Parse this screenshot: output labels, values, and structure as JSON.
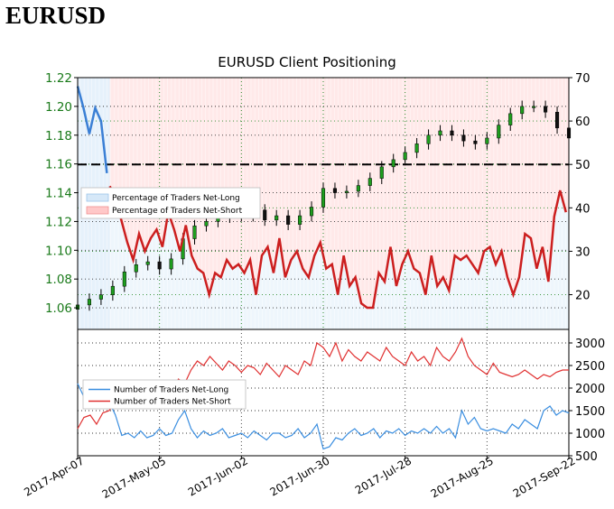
{
  "heading": "EURUSD",
  "chart_data": [
    {
      "type": "line",
      "title": "EURUSD Client Positioning",
      "x_ticks": [
        "2017-Apr-07",
        "2017-May-05",
        "2017-Jun-02",
        "2017-Jun-30",
        "2017-Jul-28",
        "2017-Aug-25",
        "2017-Sep-22"
      ],
      "y_left": {
        "ylim": [
          1.045,
          1.22
        ],
        "ticks": [
          "1.06",
          "1.08",
          "1.10",
          "1.12",
          "1.14",
          "1.16",
          "1.18",
          "1.20",
          "1.22"
        ]
      },
      "y_right": {
        "ylim": [
          12,
          70
        ],
        "ticks": [
          "20",
          "30",
          "40",
          "50",
          "60",
          "70"
        ]
      },
      "reference_line": {
        "value": 50,
        "axis": "right",
        "style": "dashed"
      },
      "legend": {
        "position": "center-left",
        "entries": [
          "Percentage of Traders Net-Long",
          "Percentage of Traders Net-Short"
        ]
      },
      "price_series": {
        "type": "candlestick",
        "x": [
          0,
          4,
          8,
          12,
          16,
          20,
          24,
          28,
          32,
          36,
          40,
          44,
          48,
          52,
          56,
          60,
          64,
          68,
          72,
          76,
          80,
          84,
          88,
          92,
          96,
          100,
          104,
          108,
          112,
          116,
          120,
          124,
          128,
          132,
          136,
          140,
          144,
          148,
          152,
          156,
          160,
          164,
          168
        ],
        "close": [
          1.062,
          1.066,
          1.069,
          1.075,
          1.085,
          1.09,
          1.092,
          1.087,
          1.094,
          1.108,
          1.117,
          1.12,
          1.123,
          1.127,
          1.124,
          1.128,
          1.121,
          1.124,
          1.118,
          1.124,
          1.13,
          1.143,
          1.14,
          1.141,
          1.145,
          1.15,
          1.158,
          1.163,
          1.168,
          1.174,
          1.18,
          1.183,
          1.18,
          1.176,
          1.174,
          1.178,
          1.187,
          1.195,
          1.2,
          1.2,
          1.196,
          1.185,
          1.178
        ]
      },
      "series": [
        {
          "name": "Percentage of Traders Net-Short",
          "color": "#cc1f1f",
          "x": [
            11,
            13,
            15,
            17,
            19,
            21,
            23,
            25,
            27,
            29,
            31,
            33,
            35,
            37,
            39,
            41,
            43,
            45,
            47,
            49,
            51,
            53,
            55,
            57,
            59,
            61,
            63,
            65,
            67,
            69,
            71,
            73,
            75,
            77,
            79,
            81,
            83,
            85,
            87,
            89,
            91,
            93,
            95,
            97,
            99,
            101,
            103,
            105,
            107,
            109,
            111,
            113,
            115,
            117,
            119,
            121,
            123,
            125,
            127,
            129,
            131,
            133,
            135,
            137,
            139,
            141,
            143,
            145,
            147,
            149,
            151,
            153,
            155,
            157,
            159,
            161,
            163,
            165,
            167
          ],
          "values": [
            45,
            42,
            37,
            32,
            28,
            34,
            30,
            33,
            35,
            31,
            39,
            35,
            30,
            36,
            29,
            26,
            25,
            20,
            25,
            24,
            28,
            26,
            27,
            25,
            28,
            20,
            29,
            31,
            25,
            33,
            24,
            28,
            30,
            26,
            24,
            29,
            32,
            26,
            27,
            20,
            29,
            22,
            24,
            18,
            17,
            17,
            25,
            23,
            31,
            22,
            27,
            30,
            26,
            25,
            20,
            29,
            22,
            24,
            21,
            29,
            28,
            29,
            27,
            25,
            30,
            31,
            27,
            30,
            24,
            20,
            24,
            34,
            33,
            26,
            31,
            23,
            38,
            44,
            39
          ]
        },
        {
          "name": "Percentage of Traders Net-Long",
          "color": "#3a7fd5",
          "x": [
            0,
            2,
            4,
            6,
            8,
            10
          ],
          "values": [
            68,
            63,
            57,
            63,
            60,
            48
          ]
        }
      ]
    },
    {
      "type": "line",
      "y_right": {
        "ylim": [
          500,
          3300
        ],
        "ticks": [
          "500",
          "1000",
          "1500",
          "2000",
          "2500",
          "3000"
        ]
      },
      "legend": {
        "position": "left",
        "entries": [
          "Number of Traders Net-Long",
          "Number of Traders Net-Short"
        ]
      },
      "series": [
        {
          "name": "Number of Traders Net-Long",
          "color": "#3a8ee0",
          "values": [
            2100,
            1800,
            1950,
            1850,
            2000,
            1700,
            1400,
            950,
            1000,
            900,
            1050,
            900,
            950,
            1100,
            950,
            1000,
            1300,
            1500,
            1100,
            900,
            1050,
            950,
            1000,
            1100,
            900,
            950,
            1000,
            900,
            1050,
            950,
            850,
            1000,
            1000,
            900,
            950,
            1100,
            900,
            1000,
            1200,
            650,
            700,
            900,
            850,
            1000,
            1100,
            950,
            1000,
            1100,
            900,
            1050,
            1000,
            1100,
            950,
            1050,
            1000,
            1100,
            1000,
            1150,
            1000,
            1100,
            900,
            1500,
            1200,
            1350,
            1100,
            1050,
            1100,
            1050,
            1000,
            1200,
            1100,
            1300,
            1200,
            1100,
            1500,
            1600,
            1400,
            1500,
            1450
          ]
        },
        {
          "name": "Number of Traders Net-Short",
          "color": "#e03030",
          "values": [
            1100,
            1350,
            1400,
            1200,
            1450,
            1500,
            1700,
            1900,
            2000,
            1850,
            2050,
            1900,
            1850,
            2050,
            1900,
            1950,
            2200,
            2100,
            2400,
            2600,
            2500,
            2700,
            2550,
            2400,
            2600,
            2500,
            2350,
            2500,
            2450,
            2300,
            2550,
            2400,
            2250,
            2500,
            2400,
            2300,
            2600,
            2500,
            3000,
            2900,
            2700,
            3000,
            2600,
            2850,
            2700,
            2600,
            2800,
            2700,
            2600,
            2900,
            2700,
            2600,
            2500,
            2800,
            2600,
            2700,
            2500,
            2900,
            2700,
            2600,
            2800,
            3100,
            2700,
            2500,
            2400,
            2300,
            2550,
            2350,
            2300,
            2250,
            2300,
            2400,
            2300,
            2200,
            2300,
            2250,
            2350,
            2400,
            2400
          ]
        }
      ]
    }
  ]
}
